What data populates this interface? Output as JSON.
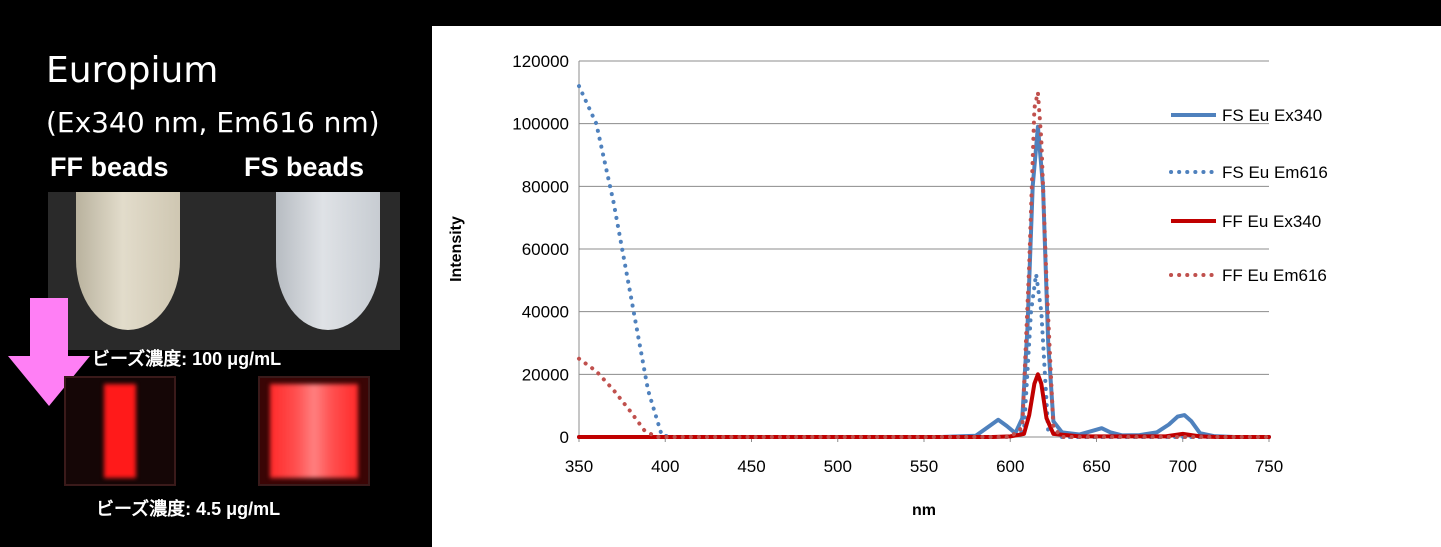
{
  "slide": {
    "title_main": "Europium",
    "title_sub": "(Ex340 nm, Em616 nm)",
    "ff_label": "FF beads",
    "fs_label": "FS beads",
    "conc_high": "ビーズ濃度: 100 μg/mL",
    "conc_low": "ビーズ濃度: 4.5 μg/mL",
    "arrow_color": "#ff7ff5"
  },
  "chart_data": {
    "type": "line",
    "title": "",
    "xlabel": "nm",
    "ylabel": "Intensity",
    "xlim": [
      350,
      750
    ],
    "ylim": [
      0,
      120000
    ],
    "x_ticks": [
      "350",
      "400",
      "450",
      "500",
      "550",
      "600",
      "650",
      "700",
      "750"
    ],
    "y_ticks": [
      "0",
      "20000",
      "40000",
      "60000",
      "80000",
      "100000",
      "120000"
    ],
    "grid": true,
    "legend_position": "right",
    "series": [
      {
        "name": "FS Eu Ex340",
        "color": "#4f81bd",
        "style": "solid",
        "points": [
          [
            350,
            0
          ],
          [
            400,
            0
          ],
          [
            500,
            0
          ],
          [
            560,
            0
          ],
          [
            580,
            400
          ],
          [
            588,
            3500
          ],
          [
            593,
            5500
          ],
          [
            598,
            3500
          ],
          [
            603,
            1200
          ],
          [
            607,
            6000
          ],
          [
            610,
            35000
          ],
          [
            613,
            80000
          ],
          [
            616,
            99000
          ],
          [
            619,
            80000
          ],
          [
            622,
            30000
          ],
          [
            625,
            5000
          ],
          [
            630,
            1500
          ],
          [
            640,
            800
          ],
          [
            648,
            2000
          ],
          [
            653,
            2800
          ],
          [
            658,
            1500
          ],
          [
            665,
            500
          ],
          [
            675,
            600
          ],
          [
            685,
            1500
          ],
          [
            692,
            4000
          ],
          [
            697,
            6500
          ],
          [
            701,
            7000
          ],
          [
            705,
            5000
          ],
          [
            710,
            1200
          ],
          [
            718,
            300
          ],
          [
            730,
            0
          ],
          [
            750,
            0
          ]
        ]
      },
      {
        "name": "FS Eu Em616",
        "color": "#4f81bd",
        "style": "dotted",
        "points": [
          [
            350,
            112000
          ],
          [
            360,
            100000
          ],
          [
            370,
            75000
          ],
          [
            380,
            45000
          ],
          [
            390,
            15000
          ],
          [
            398,
            500
          ],
          [
            405,
            0
          ],
          [
            500,
            0
          ],
          [
            600,
            0
          ],
          [
            608,
            2000
          ],
          [
            612,
            40000
          ],
          [
            615,
            52000
          ],
          [
            618,
            40000
          ],
          [
            622,
            2000
          ],
          [
            630,
            0
          ],
          [
            750,
            0
          ]
        ]
      },
      {
        "name": "FF Eu Ex340",
        "color": "#c00000",
        "style": "solid",
        "points": [
          [
            350,
            0
          ],
          [
            500,
            0
          ],
          [
            590,
            0
          ],
          [
            600,
            200
          ],
          [
            608,
            1000
          ],
          [
            611,
            7000
          ],
          [
            614,
            17000
          ],
          [
            616,
            20000
          ],
          [
            618,
            17000
          ],
          [
            621,
            6000
          ],
          [
            625,
            1000
          ],
          [
            640,
            200
          ],
          [
            690,
            200
          ],
          [
            700,
            1000
          ],
          [
            710,
            200
          ],
          [
            720,
            0
          ],
          [
            750,
            0
          ]
        ]
      },
      {
        "name": "FF Eu Em616",
        "color": "#c0504d",
        "style": "dotted",
        "points": [
          [
            350,
            25000
          ],
          [
            360,
            21000
          ],
          [
            370,
            15000
          ],
          [
            380,
            8000
          ],
          [
            388,
            2000
          ],
          [
            395,
            0
          ],
          [
            500,
            0
          ],
          [
            600,
            0
          ],
          [
            607,
            3000
          ],
          [
            611,
            55000
          ],
          [
            614,
            105000
          ],
          [
            616,
            110000
          ],
          [
            618,
            95000
          ],
          [
            621,
            50000
          ],
          [
            625,
            3000
          ],
          [
            630,
            0
          ],
          [
            750,
            0
          ]
        ]
      }
    ]
  }
}
